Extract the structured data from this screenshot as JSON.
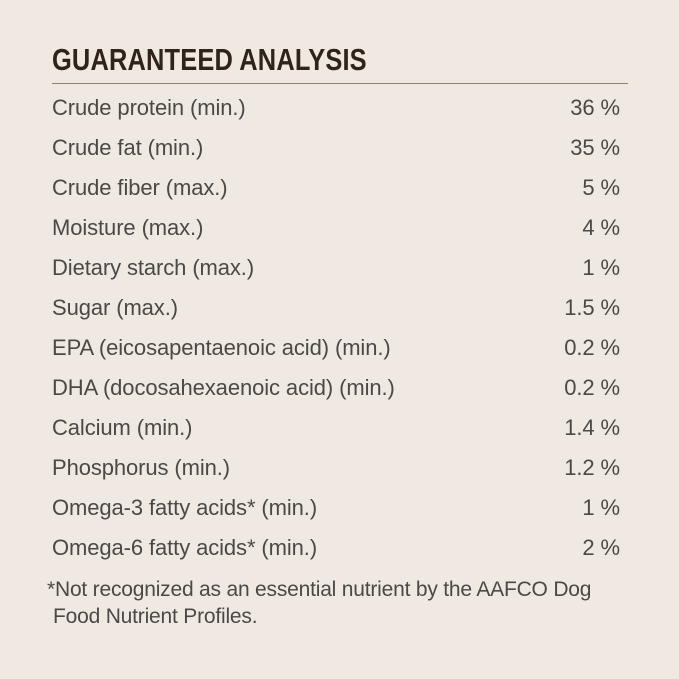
{
  "panel": {
    "title": "GUARANTEED ANALYSIS",
    "rows": [
      {
        "label": "Crude protein (min.)",
        "value": "36 %"
      },
      {
        "label": "Crude fat (min.)",
        "value": "35 %"
      },
      {
        "label": "Crude fiber (max.)",
        "value": "5 %"
      },
      {
        "label": "Moisture (max.)",
        "value": "4 %"
      },
      {
        "label": "Dietary starch (max.)",
        "value": "1 %"
      },
      {
        "label": "Sugar (max.)",
        "value": "1.5 %"
      },
      {
        "label": "EPA (eicosapentaenoic acid) (min.)",
        "value": "0.2 %"
      },
      {
        "label": "DHA (docosahexaenoic acid) (min.)",
        "value": "0.2 %"
      },
      {
        "label": "Calcium (min.)",
        "value": "1.4 %"
      },
      {
        "label": "Phosphorus (min.)",
        "value": "1.2 %"
      },
      {
        "label": "Omega-3 fatty acids* (min.)",
        "value": "1 %"
      },
      {
        "label": "Omega-6 fatty acids* (min.)",
        "value": "2 %"
      }
    ],
    "footnote": {
      "line1": "*Not recognized as an essential nutrient by the AAFCO Dog",
      "line2": "Food Nutrient Profiles."
    },
    "colors": {
      "background": "#EFE9E2",
      "title_text": "#30231B",
      "rule": "#8D8379",
      "body_text": "#4B4947"
    }
  }
}
